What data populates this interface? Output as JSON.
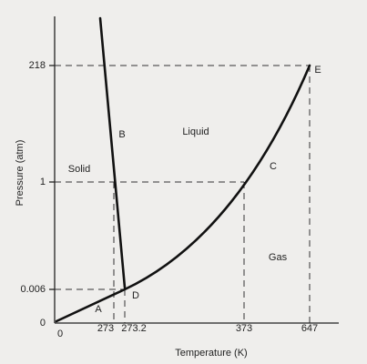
{
  "axes": {
    "y_label": "Pressure (atm)",
    "x_label": "Temperature (K)",
    "y_ticks": [
      "218",
      "1",
      "0.006",
      "0"
    ],
    "x_ticks": [
      "0",
      "273",
      "273.2",
      "373",
      "647"
    ]
  },
  "regions": {
    "solid": "Solid",
    "liquid": "Liquid",
    "gas": "Gas"
  },
  "points": {
    "a": "A",
    "b": "B",
    "c": "C",
    "d": "D",
    "e": "E"
  }
}
